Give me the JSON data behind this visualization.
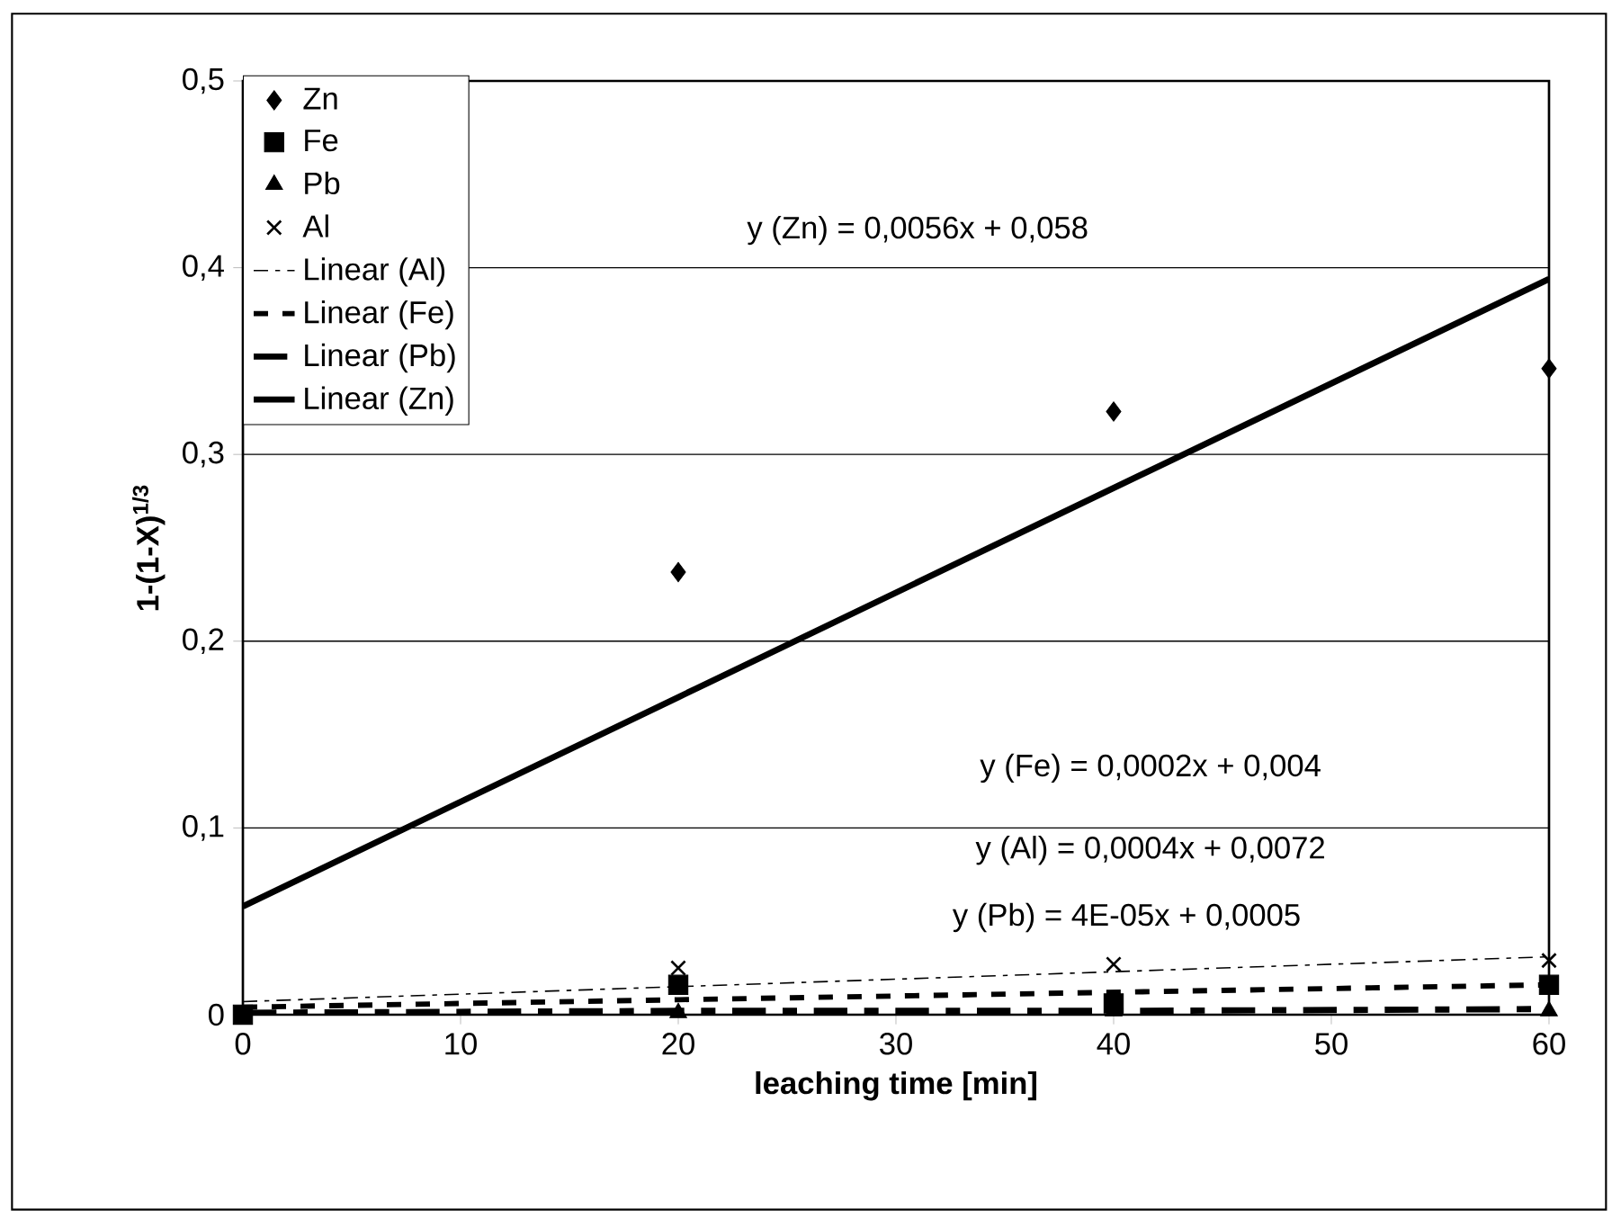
{
  "chart_data": {
    "type": "scatter",
    "xlabel": "leaching time [min]",
    "ylabel": "1-(1-X)$^{1/3}$",
    "x": [
      0,
      20,
      40,
      60
    ],
    "series": [
      {
        "name": "Zn",
        "color": "#000000",
        "marker": "diamond",
        "values": [
          null,
          0.237,
          0.323,
          0.346
        ]
      },
      {
        "name": "Fe",
        "color": "#000000",
        "marker": "square",
        "values": [
          0,
          0.016,
          0.006,
          0.016
        ]
      },
      {
        "name": "Pb",
        "color": "#000000",
        "marker": "triangle",
        "values": [
          null,
          0.001,
          0.002,
          0.002
        ]
      },
      {
        "name": "Al",
        "color": "#000000",
        "marker": "cross",
        "values": [
          null,
          0.025,
          0.027,
          0.029
        ]
      },
      {
        "name": "Linear (Al)",
        "type": "line",
        "color": "#000000",
        "line_style": "dashed",
        "values": [
          0.007,
          0.015,
          0.023,
          0.031
        ]
      },
      {
        "name": "Linear (Fe)",
        "type": "line",
        "color": "#000000",
        "line_style": "dashed",
        "values": [
          0.004,
          0.008,
          0.012,
          0.016
        ]
      },
      {
        "name": "Linear (Pb)",
        "type": "line",
        "color": "#000000",
        "line_style": "dashed",
        "values": [
          0.001,
          0.002,
          0.002,
          0.003
        ]
      },
      {
        "name": "Linear (Zn)",
        "type": "line",
        "color": "#000000",
        "line_style": "solid",
        "values": [
          0.058,
          0.17,
          0.282,
          0.394
        ]
      }
    ],
    "annotations": [
      "y (Zn) = 0,0056x + 0,058",
      "y (Fe) = 0,0002x + 0,004",
      "y (Al) = 0,0004x + 0,0072",
      "y (Pb) = 4E-05x + 0,0005"
    ],
    "xlim": [
      0,
      60
    ],
    "xticks": [
      0,
      10,
      20,
      30,
      40,
      50,
      60
    ],
    "ylim": [
      0,
      0.5
    ],
    "yticks": [
      0,
      {
        "value": 0.1,
        "label": "0,1"
      },
      {
        "value": 0.2,
        "label": "0,2"
      },
      {
        "value": 0.3,
        "label": "0,3"
      },
      {
        "value": 0.4,
        "label": "0,4"
      },
      {
        "value": 0.5,
        "label": "0,5"
      }
    ],
    "grid": "y",
    "legend": "top left"
  }
}
